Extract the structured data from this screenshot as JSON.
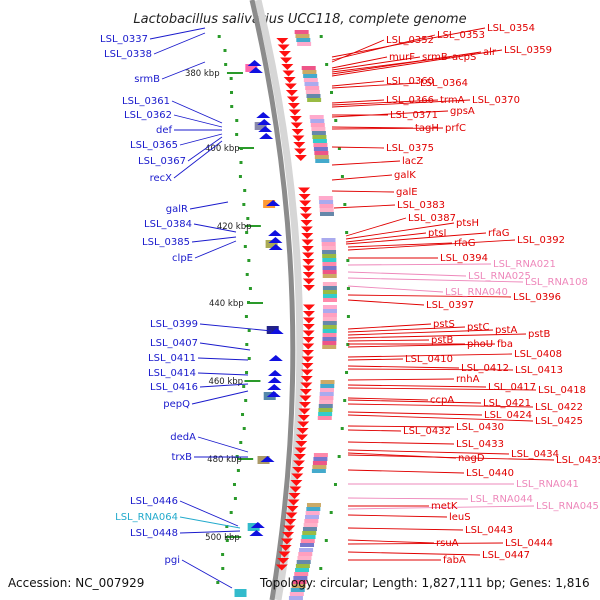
{
  "title": "Lactobacillus salivarius UCC118, complete genome",
  "footer": {
    "accession": "Accession: NC_007929",
    "summary": "Topology: circular; Length: 1,827,111 bp; Genes: 1,816"
  },
  "colors": {
    "left_labels": "#1a1acc",
    "right_labels": "#e00000",
    "rna_labels": "#ee88bb",
    "cyan_label": "#22aacc",
    "kbp_ticks": "#2a9a2a",
    "backbone": "#8c8c8c"
  },
  "kbp_marks": [
    "380 kbp",
    "400 kbp",
    "420 kbp",
    "440 kbp",
    "460 kbp",
    "480 kbp",
    "500 kbp"
  ],
  "left_genes": [
    "LSL_0337",
    "LSL_0338",
    "srmB",
    "LSL_0361",
    "LSL_0362",
    "def",
    "LSL_0365",
    "LSL_0367",
    "recX",
    "galR",
    "LSL_0384",
    "LSL_0385",
    "clpE",
    "LSL_0399",
    "LSL_0407",
    "LSL_0411",
    "LSL_0414",
    "LSL_0416",
    "pepQ",
    "dedA",
    "trxB",
    "LSL_0446",
    "LSL_RNA064",
    "LSL_0448",
    "pgi"
  ],
  "right_genes": [
    "LSL_0354",
    "LSL_0352",
    "LSL_0353",
    "murF",
    "srmB",
    "acpS",
    "alr",
    "LSL_0359",
    "LSL_0360",
    "LSL_0364",
    "LSL_0366",
    "trmA",
    "LSL_0370",
    "LSL_0371",
    "gpsA",
    "tagH",
    "prfC",
    "LSL_0375",
    "lacZ",
    "galK",
    "galE",
    "LSL_0383",
    "LSL_0387",
    "ptsH",
    "ptsI",
    "rfaG",
    "rfaG",
    "LSL_0392",
    "LSL_0394",
    "LSL_RNA021",
    "LSL_RNA025",
    "LSL_RNA108",
    "LSL_RNA040",
    "LSL_0396",
    "LSL_0397",
    "pstS",
    "pstC",
    "pstA",
    "pstB",
    "pstB",
    "phoU",
    "fba",
    "LSL_0410",
    "LSL_0408",
    "LSL_0412",
    "LSL_0413",
    "rnhA",
    "LSL_0417",
    "LSL_0418",
    "ccpA",
    "LSL_0421",
    "LSL_0422",
    "LSL_0424",
    "LSL_0425",
    "LSL_0432",
    "LSL_0430",
    "LSL_0433",
    "LSL_0434",
    "nagD",
    "LSL_0435",
    "LSL_0440",
    "LSL_RNA041",
    "LSL_RNA044",
    "metK",
    "LSL_RNA045",
    "leuS",
    "LSL_0443",
    "rsuA",
    "LSL_0444",
    "LSL_0447",
    "fabA"
  ]
}
